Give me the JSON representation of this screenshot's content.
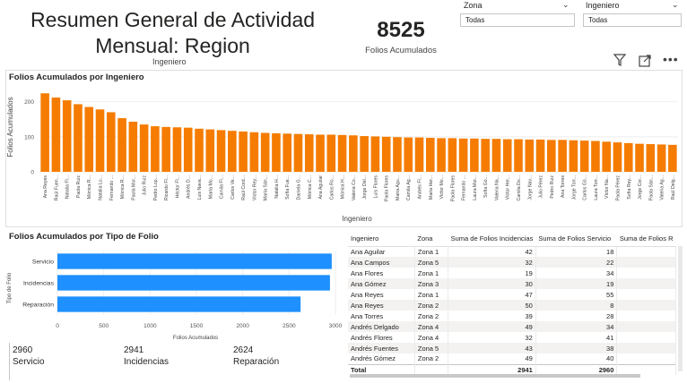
{
  "header": {
    "title_line1": "Resumen General de Actividad",
    "title_line2": "Mensual: Region",
    "subtitle": "Ingeniero"
  },
  "kpi": {
    "value": "8525",
    "label": "Folios Acumulados"
  },
  "slicers": [
    {
      "label": "Zona",
      "value": "Todas"
    },
    {
      "label": "Ingeniero",
      "value": "Todas"
    }
  ],
  "icons": [
    "filter-icon",
    "focus-mode-icon",
    "more-options-icon"
  ],
  "colors": {
    "bar_orange": "#F57C00",
    "bar_blue": "#1E90FF"
  },
  "top_chart": {
    "title": "Folios Acumulados por Ingeniero",
    "ylabel": "Folios Acumulados",
    "xlabel": "Ingeniero"
  },
  "bottom_chart": {
    "title": "Folios Acumulados por Tipo de Folio",
    "ylabel": "Tipo de Folio",
    "xlabel": "Folios Acumulados"
  },
  "chart_data": [
    {
      "type": "bar",
      "title": "Folios Acumulados por Ingeniero",
      "xlabel": "Ingeniero",
      "ylabel": "Folios Acumulados",
      "ylim": [
        0,
        240
      ],
      "yticks": [
        0,
        100,
        200
      ],
      "categories": [
        "Ana Reyes",
        "Raúl Fuen...",
        "Natalia Fl...",
        "Paola Ruiz",
        "Mónica R...",
        "Natalia Lo...",
        "Fernando ...",
        "Mónica R...",
        "Paola Mor...",
        "Julio Ruiz",
        "Pedro Lop...",
        "Ricardo Fl...",
        "Héctor Fl...",
        "Andrés D...",
        "Luis Nava...",
        "María Mo...",
        "Camila Fl...",
        "Carlos Ve...",
        "Raúl Cord...",
        "Víctor Rey...",
        "María Sán...",
        "Natalia H...",
        "Sofía Fue...",
        "Daniela G...",
        "Mónica C...",
        "Ana Aguilar",
        "Carlos Ro...",
        "Mónica H...",
        "Valeria Co...",
        "Jorge Del...",
        "Luis Flores",
        "Paola Flores",
        "María Agu...",
        "Camila Ag...",
        "Andrés Fl...",
        "María Her...",
        "Víctor Mo...",
        "Paola Flores",
        "Fernando ...",
        "Laura Mor...",
        "Sofía Gó...",
        "Valeria Na...",
        "Víctor Her...",
        "Camila Do...",
        "Jorge Nav...",
        "Julio Pérez",
        "Pedro Ruiz",
        "Ana Torres",
        "Jorge Torr...",
        "Carlos Gó...",
        "Laura Torr...",
        "Víctor Na...",
        "Paola Pérez",
        "Sofía Rey...",
        "Jorge Cor...",
        "Paola Sán...",
        "Valeria Ag...",
        "Raúl Delg..."
      ],
      "values": [
        224,
        212,
        204,
        193,
        185,
        178,
        170,
        153,
        143,
        135,
        130,
        128,
        127,
        126,
        123,
        121,
        119,
        117,
        115,
        113,
        111,
        110,
        109,
        108,
        107,
        106,
        106,
        105,
        104,
        102,
        101,
        100,
        99,
        98,
        98,
        97,
        96,
        96,
        95,
        95,
        94,
        94,
        93,
        93,
        92,
        92,
        91,
        91,
        90,
        89,
        88,
        86,
        84,
        82,
        80,
        79,
        78,
        77
      ]
    },
    {
      "type": "bar",
      "orientation": "horizontal",
      "title": "Folios Acumulados por Tipo de Folio",
      "xlabel": "Folios Acumulados",
      "ylabel": "Tipo de Folio",
      "xlim": [
        0,
        3000
      ],
      "xticks": [
        0,
        500,
        1000,
        1500,
        2000,
        2500,
        3000
      ],
      "categories": [
        "Servicio",
        "Incidencias",
        "Reparación"
      ],
      "values": [
        2960,
        2941,
        2624
      ]
    }
  ],
  "cards": [
    {
      "value": "2960",
      "label": "Servicio"
    },
    {
      "value": "2941",
      "label": "Incidencias"
    },
    {
      "value": "2624",
      "label": "Reparación"
    }
  ],
  "table": {
    "columns": [
      "Ingeniero",
      "Zona",
      "Suma de Folios Incidencias",
      "Suma de Folios Servicio",
      "Suma de Folios R"
    ],
    "rows": [
      [
        "Ana Aguilar",
        "Zona 1",
        "42",
        "18"
      ],
      [
        "Ana Campos",
        "Zona 5",
        "32",
        "22"
      ],
      [
        "Ana Flores",
        "Zona 1",
        "19",
        "34"
      ],
      [
        "Ana Gómez",
        "Zona 3",
        "30",
        "19"
      ],
      [
        "Ana Reyes",
        "Zona 1",
        "47",
        "55"
      ],
      [
        "Ana Reyes",
        "Zona 2",
        "50",
        "8"
      ],
      [
        "Ana Torres",
        "Zona 2",
        "39",
        "28"
      ],
      [
        "Andrés Delgado",
        "Zona 4",
        "49",
        "34"
      ],
      [
        "Andrés Flores",
        "Zona 4",
        "32",
        "41"
      ],
      [
        "Andrés Fuentes",
        "Zona 5",
        "43",
        "38"
      ],
      [
        "Andrés Gómez",
        "Zona 2",
        "49",
        "40"
      ]
    ],
    "total": [
      "Total",
      "",
      "2941",
      "2960"
    ]
  }
}
